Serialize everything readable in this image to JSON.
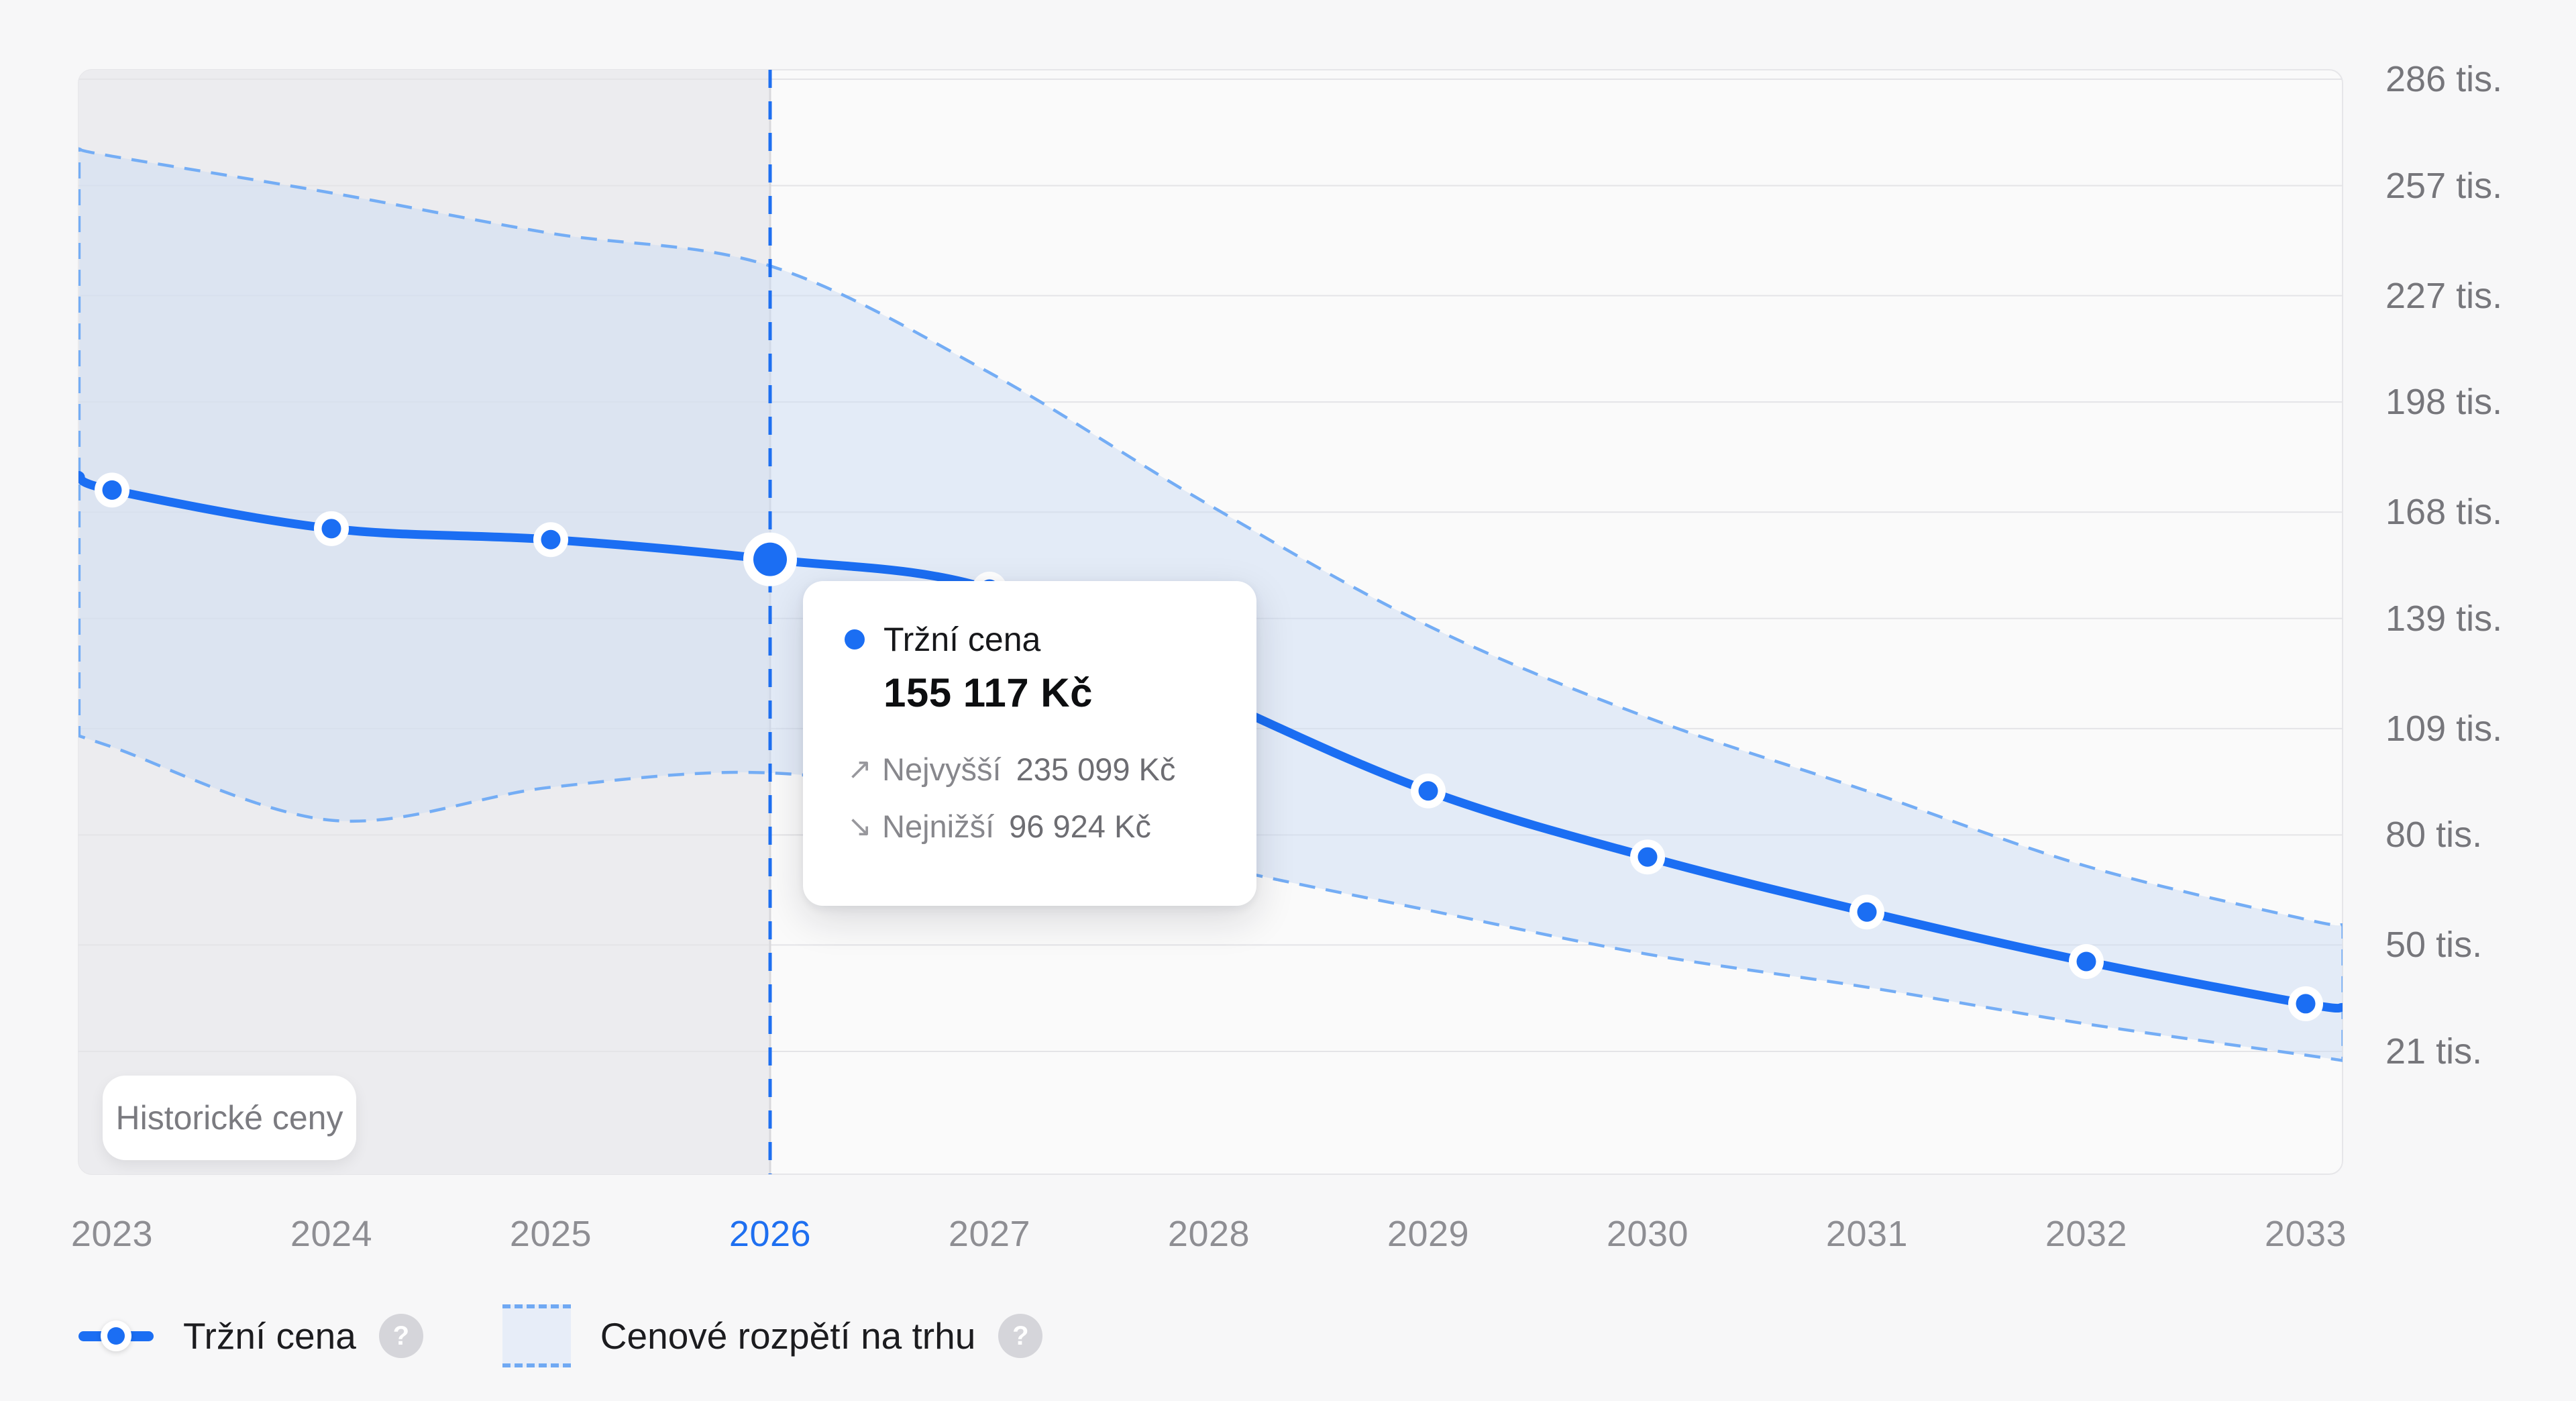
{
  "colors": {
    "accent_blue": "#1b6ef3",
    "dashed_blue": "#74adf5",
    "band_fill": "rgba(203,220,243,0.5)",
    "historical_bg": "#ececef",
    "plot_bg": "#fafafa",
    "plot_border": "#e6e6e9",
    "gridline": "#e4e4e7",
    "page_bg": "#f7f7f8"
  },
  "chart_data": {
    "type": "line",
    "title": "",
    "xlabel": "",
    "ylabel": "",
    "unit": "tis. Kč",
    "grid": "horizontal",
    "x_ticks": [
      2023,
      2024,
      2025,
      2026,
      2027,
      2028,
      2029,
      2030,
      2031,
      2032,
      2033
    ],
    "x_tick_labels": [
      "2023",
      "2024",
      "2025",
      "2026",
      "2027",
      "2028",
      "2029",
      "2030",
      "2031",
      "2032",
      "2033"
    ],
    "highlighted_x": 2026,
    "y_tick_values": [
      286,
      257,
      227,
      198,
      168,
      139,
      109,
      80,
      50,
      21
    ],
    "y_tick_labels": [
      "286 tis.",
      "257 tis.",
      "227 tis.",
      "198 tis.",
      "168 tis.",
      "139 tis.",
      "109 tis.",
      "80 tis.",
      "50 tis.",
      "21 tis."
    ],
    "divider_x": 2026,
    "series": [
      {
        "name": "Tržní cena",
        "type": "line",
        "x": [
          2022.85,
          2023,
          2024,
          2025,
          2026,
          2027,
          2028,
          2029,
          2030,
          2031,
          2032,
          2033,
          2033.17
        ],
        "values": [
          178,
          174,
          163.5,
          160.5,
          155.117,
          147,
          118,
          92,
          74,
          59,
          45.5,
          34,
          33
        ]
      },
      {
        "name": "Cenové rozpětí na trhu",
        "type": "band",
        "x": [
          2022.85,
          2023,
          2024,
          2025,
          2026,
          2027,
          2028,
          2029,
          2030,
          2031,
          2032,
          2033,
          2033.17
        ],
        "upper": [
          267,
          265,
          255,
          244,
          235.099,
          206,
          170,
          137,
          112,
          92,
          71.5,
          57,
          55.5
        ],
        "lower": [
          107,
          104,
          84,
          93,
          96.924,
          88,
          72,
          59.5,
          47.5,
          38.5,
          28.5,
          20,
          18.5
        ]
      }
    ],
    "selected_point": {
      "x": 2026,
      "value": 155.117,
      "upper": 235.099,
      "lower": 96.924
    }
  },
  "tooltip": {
    "series_label": "Tržní cena",
    "value": "155 117 Kč",
    "high_label": "Nejvyšší",
    "high_value": "235 099 Kč",
    "low_label": "Nejnižší",
    "low_value": "96 924 Kč",
    "high_arrow": "↗",
    "low_arrow": "↘"
  },
  "historical_badge": {
    "label": "Historické ceny"
  },
  "legend": {
    "items": [
      {
        "label": "Tržní cena",
        "help": "?"
      },
      {
        "label": "Cenové rozpětí na trhu",
        "help": "?"
      }
    ]
  }
}
